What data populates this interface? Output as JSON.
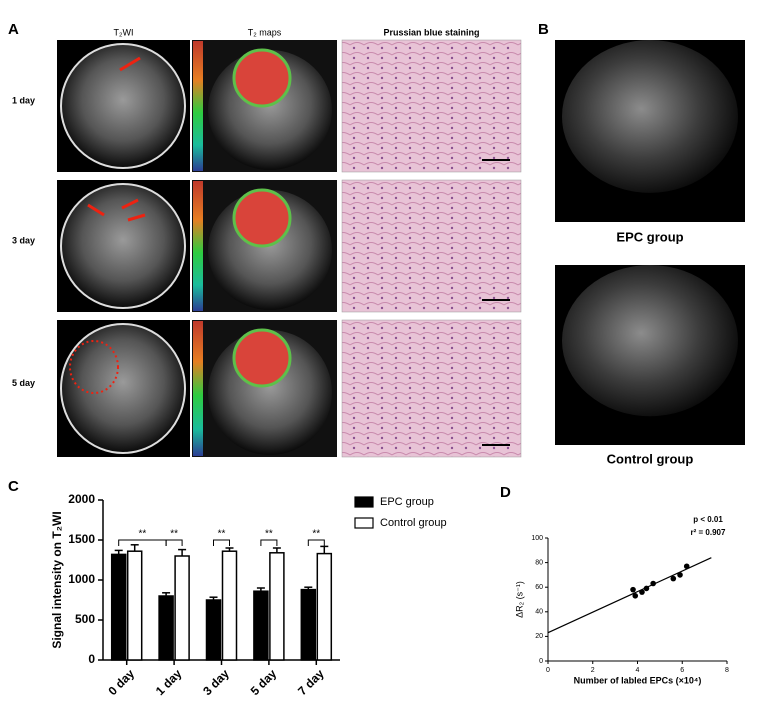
{
  "panel_labels": [
    "A",
    "B",
    "C",
    "D"
  ],
  "panel_a": {
    "columns": [
      "T₂WI",
      "T₂ maps",
      "Prussian blue staining"
    ],
    "rows": [
      "1 day",
      "3 day",
      "5 day"
    ]
  },
  "panel_b": {
    "captions": [
      "EPC group",
      "Control group"
    ]
  },
  "chart_data": [
    {
      "type": "bar",
      "ylabel": "Signal intensity on T₂WI",
      "categories": [
        "0 day",
        "1 day",
        "3 day",
        "5 day",
        "7 day"
      ],
      "series": [
        {
          "name": "EPC group",
          "color": "#000000",
          "values": [
            1320,
            800,
            750,
            860,
            880
          ],
          "errors": [
            50,
            40,
            35,
            40,
            30
          ]
        },
        {
          "name": "Control group",
          "color": "#ffffff",
          "values": [
            1360,
            1300,
            1360,
            1340,
            1330
          ],
          "errors": [
            80,
            80,
            40,
            60,
            90
          ]
        }
      ],
      "significance": [
        "**",
        "**",
        "**",
        "**",
        "**"
      ],
      "ylim": [
        0,
        2000
      ],
      "yticks": [
        0,
        500,
        1000,
        1500,
        2000
      ]
    },
    {
      "type": "scatter",
      "xlabel": "Number of labled EPCs (×10⁴)",
      "ylabel": "ΔR₂ (s⁻¹)",
      "annotations": [
        "p < 0.01",
        "r² = 0.907"
      ],
      "x": [
        3.8,
        3.9,
        4.2,
        4.4,
        4.7,
        5.6,
        5.9,
        6.2
      ],
      "values": [
        58,
        53,
        56,
        59,
        63,
        67,
        70,
        77
      ],
      "color": "#000000",
      "trend_line": {
        "x": [
          0,
          7.3
        ],
        "y": [
          23,
          84
        ]
      },
      "xlim": [
        0,
        8
      ],
      "xticks": [
        0,
        2,
        4,
        6,
        8
      ],
      "ylim": [
        0,
        100
      ],
      "yticks": [
        0,
        20,
        40,
        60,
        80,
        100
      ]
    }
  ]
}
